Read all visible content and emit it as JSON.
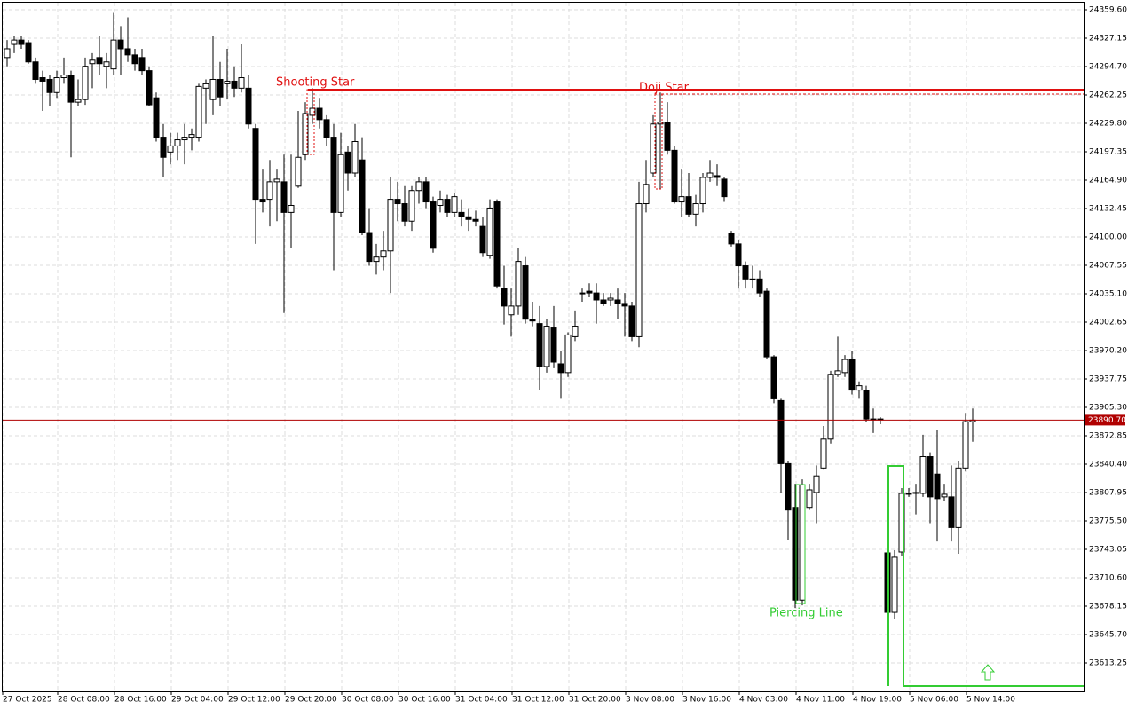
{
  "chart_data": {
    "type": "candlestick",
    "categories": [
      "27 Oct 2025",
      null,
      null,
      null,
      null,
      null,
      null,
      null,
      "28 Oct 08:00",
      null,
      null,
      null,
      null,
      null,
      null,
      null,
      "28 Oct 16:00",
      null,
      null,
      null,
      null,
      null,
      null,
      null,
      "29 Oct 04:00",
      null,
      null,
      null,
      null,
      null,
      null,
      null,
      "29 Oct 12:00",
      null,
      null,
      null,
      null,
      null,
      null,
      null,
      "29 Oct 20:00",
      null,
      null,
      null,
      null,
      null,
      null,
      null,
      "30 Oct 08:00",
      null,
      null,
      null,
      null,
      null,
      null,
      null,
      "30 Oct 16:00",
      null,
      null,
      null,
      null,
      null,
      null,
      null,
      "31 Oct 04:00",
      null,
      null,
      null,
      null,
      null,
      null,
      null,
      "31 Oct 12:00",
      null,
      null,
      null,
      null,
      null,
      null,
      null,
      "31 Oct 20:00",
      null,
      null,
      null,
      null,
      null,
      null,
      null,
      "3 Nov 08:00",
      null,
      null,
      null,
      null,
      null,
      null,
      null,
      "3 Nov 16:00",
      null,
      null,
      null,
      null,
      null,
      null,
      null,
      "4 Nov 03:00",
      null,
      null,
      null,
      null,
      null,
      null,
      null,
      "4 Nov 11:00",
      null,
      null,
      null,
      null,
      null,
      null,
      null,
      "4 Nov 19:00",
      null,
      null,
      null,
      null,
      null,
      null,
      null,
      "5 Nov 06:00",
      null,
      null,
      null,
      null,
      null,
      null,
      null,
      "5 Nov 14:00"
    ],
    "open": [
      24305,
      24320,
      24325,
      24322,
      24300,
      24282,
      24280,
      24265,
      24282,
      24285,
      24254,
      24257,
      24298,
      24305,
      24295,
      24292,
      24325,
      24315,
      24308,
      24305,
      24290,
      24259,
      24214,
      24197,
      24204,
      24211,
      24214,
      24214,
      24270,
      24257,
      24280,
      24275,
      24278,
      24270,
      24270,
      24224,
      24143,
      24143,
      24163,
      24163,
      24128,
      24158,
      24194,
      24239,
      24247,
      24234,
      24214,
      24128,
      24197,
      24173,
      24188,
      24105,
      24072,
      24077,
      24084,
      24143,
      24138,
      24118,
      24153,
      24163,
      24140,
      24136,
      24143,
      24128,
      24128,
      24123,
      24120,
      24112,
      24079,
      24140,
      24041,
      24011,
      24021,
      24067,
      24006,
      24001,
      23952,
      23996,
      23955,
      23945,
      23986,
      24036,
      24038,
      24036,
      24028,
      24028,
      24028,
      24024,
      24021,
      23986,
      24138,
      24173,
      24229,
      24231,
      24199,
      24140,
      24146,
      24126,
      24138,
      24168,
      24170,
      24166,
      24104,
      24092,
      24067,
      24052,
      24052,
      24038,
      23963,
      23913,
      23841,
      23791,
      23685,
      23791,
      23808,
      23836,
      23869,
      23943,
      23945,
      23960,
      23925,
      23925,
      23892,
      23891,
      23739,
      23671,
      23740,
      23807,
      23807,
      23807,
      23849,
      23829,
      23803,
      23803,
      23768,
      23836,
      23889
    ],
    "high": [
      24325,
      24330,
      24330,
      24325,
      24305,
      24290,
      24285,
      24290,
      24305,
      24290,
      24280,
      24305,
      24310,
      24330,
      24310,
      24356,
      24341,
      24351,
      24315,
      24315,
      24295,
      24265,
      24229,
      24219,
      24219,
      24229,
      24224,
      24275,
      24280,
      24330,
      24300,
      24315,
      24295,
      24320,
      24285,
      24229,
      24178,
      24188,
      24178,
      24194,
      24194,
      24244,
      24254,
      24270,
      24259,
      24239,
      24229,
      24219,
      24204,
      24229,
      24214,
      24133,
      24092,
      24107,
      24168,
      24163,
      24158,
      24158,
      24168,
      24168,
      24146,
      24153,
      24148,
      24150,
      24143,
      24133,
      24130,
      24123,
      24143,
      24143,
      24067,
      24041,
      24087,
      24077,
      24026,
      24021,
      24006,
      24021,
      23970,
      23991,
      24016,
      24041,
      24047,
      24047,
      24036,
      24036,
      24041,
      24036,
      24026,
      24163,
      24188,
      24239,
      24265,
      24254,
      24204,
      24178,
      24173,
      24148,
      24173,
      24188,
      24183,
      24168,
      24107,
      24097,
      24072,
      24067,
      24062,
      24041,
      23965,
      23915,
      23844,
      23818,
      23823,
      23818,
      23839,
      23884,
      23947,
      23986,
      23965,
      23970,
      23935,
      23930,
      23904,
      23894,
      23742,
      23742,
      23813,
      23813,
      23818,
      23874,
      23854,
      23879,
      23818,
      23839,
      23844,
      23899,
      23904
    ],
    "low": [
      24295,
      24310,
      24315,
      24298,
      24275,
      24244,
      24249,
      24259,
      24275,
      24191,
      24249,
      24251,
      24270,
      24285,
      24270,
      24285,
      24285,
      24300,
      24290,
      24285,
      24249,
      24209,
      24168,
      24183,
      24188,
      24183,
      24199,
      24209,
      24229,
      24239,
      24249,
      24257,
      24260,
      24265,
      24224,
      24092,
      24128,
      24112,
      24118,
      24013,
      24087,
      24156,
      24188,
      24229,
      24224,
      24204,
      24062,
      24123,
      24153,
      24168,
      24102,
      24067,
      24057,
      24062,
      24036,
      24118,
      24112,
      24107,
      24138,
      24133,
      24082,
      24128,
      24123,
      24123,
      24112,
      24107,
      24112,
      24077,
      24075,
      24041,
      24000,
      23986,
      24011,
      24001,
      23998,
      23925,
      23945,
      23950,
      23915,
      23940,
      23981,
      24026,
      24031,
      24001,
      24021,
      24021,
      24006,
      23986,
      23981,
      23974,
      24128,
      24168,
      24155,
      24194,
      24138,
      24123,
      24123,
      24112,
      24128,
      24163,
      24158,
      24140,
      24089,
      24041,
      24041,
      24041,
      24031,
      23960,
      23910,
      23808,
      23754,
      23676,
      23679,
      23788,
      23773,
      23834,
      23864,
      23940,
      23940,
      23920,
      23915,
      23889,
      23876,
      23886,
      23666,
      23663,
      23736,
      23803,
      23783,
      23803,
      23773,
      23752,
      23798,
      23752,
      23738,
      23832,
      23866
    ],
    "close": [
      24315,
      24325,
      24320,
      24300,
      24280,
      24278,
      24265,
      24282,
      24285,
      24254,
      24257,
      24295,
      24302,
      24298,
      24300,
      24325,
      24315,
      24308,
      24298,
      24290,
      24251,
      24214,
      24191,
      24204,
      24211,
      24214,
      24217,
      24272,
      24275,
      24280,
      24260,
      24278,
      24270,
      24282,
      24229,
      24143,
      24140,
      24163,
      24166,
      24128,
      24136,
      24191,
      24241,
      24247,
      24234,
      24214,
      24128,
      24194,
      24173,
      24209,
      24105,
      24072,
      24077,
      24084,
      24143,
      24138,
      24118,
      24153,
      24163,
      24140,
      24087,
      24143,
      24128,
      24146,
      24123,
      24120,
      24118,
      24082,
      24133,
      24044,
      24021,
      24021,
      24072,
      24006,
      24004,
      23952,
      23998,
      23957,
      23945,
      23988,
      23998,
      24035,
      24036,
      24028,
      24024,
      24030,
      24024,
      24021,
      23986,
      24138,
      24160,
      24229,
      24231,
      24199,
      24140,
      24146,
      24126,
      24138,
      24168,
      24173,
      24168,
      24146,
      24092,
      24067,
      24052,
      24052,
      24036,
      23963,
      23915,
      23841,
      23788,
      23685,
      23817,
      23811,
      23827,
      23869,
      23943,
      23947,
      23960,
      23925,
      23930,
      23892,
      23891,
      23892,
      23671,
      23734,
      23807,
      23806,
      23808,
      23849,
      23803,
      23801,
      23806,
      23768,
      23836,
      23889,
      23890.7
    ],
    "ylim": [
      23580.8,
      24367.7
    ],
    "yticks": [
      {
        "value": 24359.6,
        "label": "24359.60"
      },
      24327.15,
      {
        "value": 24294.7,
        "label": "24294.70"
      },
      24262.25,
      {
        "value": 24229.8,
        "label": "24229.80"
      },
      24197.35,
      {
        "value": 24164.9,
        "label": "24164.90"
      },
      24132.45,
      {
        "value": 24100,
        "label": "24100.00"
      },
      24067.55,
      {
        "value": 24035.1,
        "label": "24035.10"
      },
      24002.65,
      {
        "value": 23970.2,
        "label": "23970.20"
      },
      23937.75,
      {
        "value": 23905.3,
        "label": "23905.30"
      },
      23872.85,
      {
        "value": 23840.4,
        "label": "23840.40"
      },
      23807.95,
      {
        "value": 23775.5,
        "label": "23775.50"
      },
      23743.05,
      {
        "value": 23710.6,
        "label": "23710.60"
      },
      23678.15,
      {
        "value": 23645.7,
        "label": "23645.70"
      },
      23613.25
    ],
    "current_price": {
      "value": 23890.7,
      "label": "23890.70"
    },
    "annotations": [
      "Shooting Star",
      "Doji Star",
      "Piercing Line"
    ],
    "grid": true
  }
}
